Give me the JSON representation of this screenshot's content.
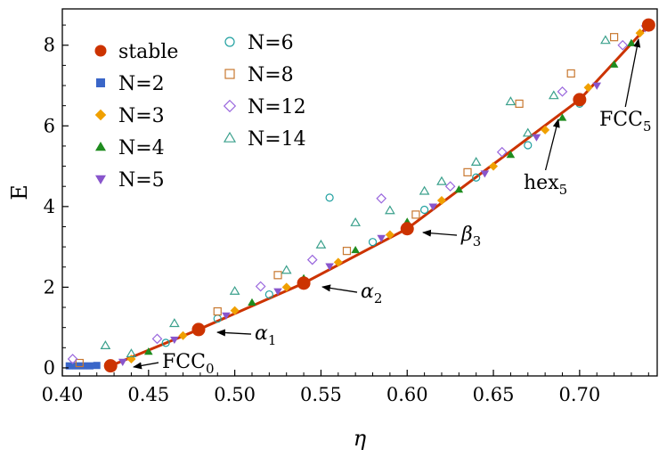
{
  "chart_data": {
    "type": "scatter",
    "xlabel": "η",
    "ylabel": "E",
    "xlim": [
      0.4,
      0.745
    ],
    "ylim": [
      -0.2,
      8.9
    ],
    "grid": false,
    "legend_position": "top-left",
    "x_ticks": [
      "0.40",
      "0.45",
      "0.50",
      "0.55",
      "0.60",
      "0.65",
      "0.70"
    ],
    "y_ticks": [
      "0",
      "2",
      "4",
      "6",
      "8"
    ],
    "series": [
      {
        "name": "stable",
        "marker": "filled-circle",
        "color": "#cc3300",
        "connected": true,
        "points": [
          [
            0.428,
            0.05
          ],
          [
            0.479,
            0.95
          ],
          [
            0.54,
            2.1
          ],
          [
            0.6,
            3.45
          ],
          [
            0.7,
            6.65
          ],
          [
            0.74,
            8.5
          ]
        ]
      },
      {
        "name": "N=2",
        "marker": "filled-square",
        "color": "#3a66c8",
        "points": [
          [
            0.404,
            0.05
          ],
          [
            0.408,
            0.05
          ],
          [
            0.412,
            0.05
          ],
          [
            0.416,
            0.05
          ],
          [
            0.42,
            0.06
          ]
        ]
      },
      {
        "name": "N=3",
        "marker": "filled-diamond",
        "color": "#f0a000",
        "points": [
          [
            0.44,
            0.22
          ],
          [
            0.47,
            0.8
          ],
          [
            0.5,
            1.42
          ],
          [
            0.53,
            2.0
          ],
          [
            0.56,
            2.62
          ],
          [
            0.59,
            3.3
          ],
          [
            0.62,
            4.15
          ],
          [
            0.65,
            5.0
          ],
          [
            0.68,
            5.9
          ],
          [
            0.705,
            6.95
          ],
          [
            0.735,
            8.3
          ]
        ]
      },
      {
        "name": "N=4",
        "marker": "filled-up-triangle",
        "color": "#1f8c1f",
        "points": [
          [
            0.45,
            0.4
          ],
          [
            0.48,
            1.0
          ],
          [
            0.51,
            1.62
          ],
          [
            0.54,
            2.22
          ],
          [
            0.57,
            2.92
          ],
          [
            0.6,
            3.62
          ],
          [
            0.63,
            4.42
          ],
          [
            0.66,
            5.28
          ],
          [
            0.69,
            6.2
          ],
          [
            0.72,
            7.52
          ],
          [
            0.73,
            8.05
          ]
        ]
      },
      {
        "name": "N=5",
        "marker": "filled-down-triangle",
        "color": "#8855cc",
        "points": [
          [
            0.435,
            0.15
          ],
          [
            0.465,
            0.7
          ],
          [
            0.495,
            1.3
          ],
          [
            0.525,
            1.9
          ],
          [
            0.555,
            2.52
          ],
          [
            0.585,
            3.22
          ],
          [
            0.615,
            4.0
          ],
          [
            0.645,
            4.82
          ],
          [
            0.675,
            5.72
          ],
          [
            0.71,
            7.0
          ],
          [
            0.738,
            8.42
          ]
        ]
      },
      {
        "name": "N=6",
        "marker": "open-circle",
        "color": "#20a0a0",
        "points": [
          [
            0.46,
            0.62
          ],
          [
            0.49,
            1.22
          ],
          [
            0.52,
            1.82
          ],
          [
            0.555,
            4.22
          ],
          [
            0.58,
            3.12
          ],
          [
            0.61,
            3.92
          ],
          [
            0.64,
            4.72
          ],
          [
            0.67,
            5.52
          ],
          [
            0.7,
            6.55
          ]
        ]
      },
      {
        "name": "N=8",
        "marker": "open-square",
        "color": "#c87830",
        "points": [
          [
            0.41,
            0.12
          ],
          [
            0.49,
            1.4
          ],
          [
            0.525,
            2.3
          ],
          [
            0.565,
            2.9
          ],
          [
            0.605,
            3.8
          ],
          [
            0.635,
            4.85
          ],
          [
            0.665,
            6.55
          ],
          [
            0.695,
            7.3
          ],
          [
            0.72,
            8.2
          ]
        ]
      },
      {
        "name": "N=12",
        "marker": "open-diamond",
        "color": "#9966dd",
        "points": [
          [
            0.406,
            0.22
          ],
          [
            0.455,
            0.72
          ],
          [
            0.515,
            2.02
          ],
          [
            0.545,
            2.68
          ],
          [
            0.585,
            4.2
          ],
          [
            0.625,
            4.5
          ],
          [
            0.655,
            5.35
          ],
          [
            0.69,
            6.85
          ],
          [
            0.725,
            8.0
          ]
        ]
      },
      {
        "name": "N=14",
        "marker": "open-up-triangle",
        "color": "#3aa08c",
        "points": [
          [
            0.425,
            0.55
          ],
          [
            0.44,
            0.35
          ],
          [
            0.465,
            1.1
          ],
          [
            0.5,
            1.9
          ],
          [
            0.53,
            2.42
          ],
          [
            0.55,
            3.05
          ],
          [
            0.57,
            3.6
          ],
          [
            0.59,
            3.9
          ],
          [
            0.61,
            4.38
          ],
          [
            0.62,
            4.62
          ],
          [
            0.64,
            5.1
          ],
          [
            0.66,
            6.6
          ],
          [
            0.67,
            5.82
          ],
          [
            0.685,
            6.75
          ],
          [
            0.715,
            8.12
          ]
        ]
      }
    ],
    "annotations": [
      {
        "label": "FCC",
        "sub": "0",
        "target": [
          0.428,
          0.05
        ]
      },
      {
        "label": "α",
        "sub": "1",
        "target": [
          0.479,
          0.95
        ]
      },
      {
        "label": "α",
        "sub": "2",
        "target": [
          0.54,
          2.1
        ]
      },
      {
        "label": "β",
        "sub": "3",
        "target": [
          0.6,
          3.45
        ]
      },
      {
        "label": "hex",
        "sub": "5",
        "target": [
          0.7,
          6.65
        ]
      },
      {
        "label": "FCC",
        "sub": "5",
        "target": [
          0.74,
          8.5
        ]
      }
    ]
  }
}
